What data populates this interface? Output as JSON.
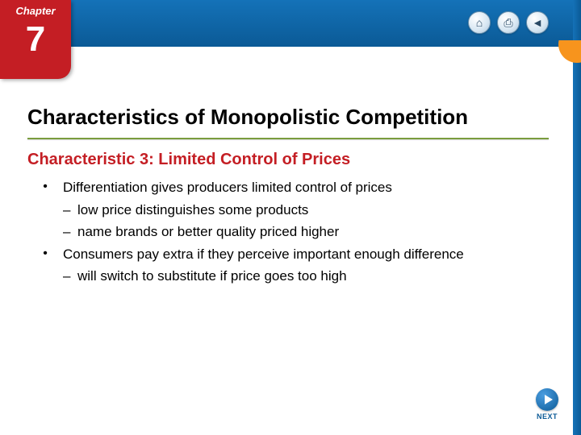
{
  "chapter": {
    "label": "Chapter",
    "number": "7"
  },
  "nav_icons": {
    "home": "⌂",
    "print": "⎙",
    "back": "◄"
  },
  "title": "Characteristics of Monopolistic Competition",
  "subtitle": "Characteristic 3: Limited Control of Prices",
  "bullets": [
    {
      "text": "Differentiation gives producers limited control of prices",
      "subs": [
        "low price distinguishes some products",
        "name brands or better quality priced higher"
      ]
    },
    {
      "text": "Consumers pay extra if they perceive important enough difference",
      "subs": [
        "will switch to substitute if price goes too high"
      ]
    }
  ],
  "next_label": "NEXT",
  "colors": {
    "header_blue_top": "#1472b8",
    "header_blue_bottom": "#0b5a96",
    "chapter_red": "#c41e24",
    "underline_green": "#7a9c3e",
    "corner_orange": "#f7941d",
    "text_black": "#000000",
    "white": "#ffffff"
  }
}
